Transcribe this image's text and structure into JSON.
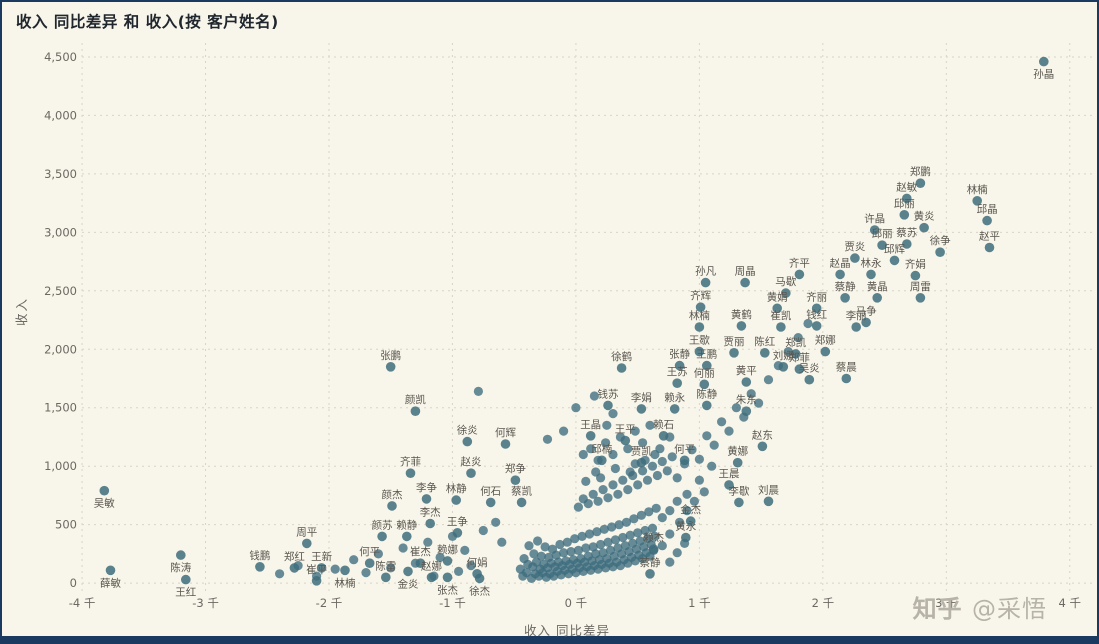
{
  "title": "收入 同比差异 和 收入(按 客户姓名)",
  "watermark": "知乎 @采悟",
  "chart_data": {
    "type": "scatter",
    "title": "收入 同比差异 和 收入(按 客户姓名)",
    "xlabel": "收入 同比差异",
    "ylabel": "收入",
    "xlim": [
      -3960,
      4180
    ],
    "ylim": [
      -170,
      4585
    ],
    "grid": true,
    "x_ticks": [
      {
        "v": -4000,
        "l": "-4 千"
      },
      {
        "v": -3000,
        "l": "-3 千"
      },
      {
        "v": -2000,
        "l": "-2 千"
      },
      {
        "v": -1000,
        "l": "-1 千"
      },
      {
        "v": 0,
        "l": "0 千"
      },
      {
        "v": 1000,
        "l": "1 千"
      },
      {
        "v": 2000,
        "l": "2 千"
      },
      {
        "v": 3000,
        "l": "3 千"
      },
      {
        "v": 4000,
        "l": "4 千"
      }
    ],
    "y_ticks": [
      {
        "v": 0,
        "l": "0"
      },
      {
        "v": 500,
        "l": "500"
      },
      {
        "v": 1000,
        "l": "1,000"
      },
      {
        "v": 1500,
        "l": "1,500"
      },
      {
        "v": 2000,
        "l": "2,000"
      },
      {
        "v": 2500,
        "l": "2,500"
      },
      {
        "v": 3000,
        "l": "3,000"
      },
      {
        "v": 3500,
        "l": "3,500"
      },
      {
        "v": 4000,
        "l": "4,000"
      },
      {
        "v": 4500,
        "l": "4,500"
      }
    ],
    "colors": {
      "point": "#3e6d7d",
      "point_label": "#59564f",
      "tick_label": "#6b6962",
      "grid": "#d8d4c6"
    },
    "points": [
      {
        "n": "孙晶",
        "x": 3790,
        "y": 4460,
        "p": "b"
      },
      {
        "n": "郑鹏",
        "x": 2790,
        "y": 3420
      },
      {
        "n": "赵敏",
        "x": 2680,
        "y": 3290
      },
      {
        "n": "林楠",
        "x": 3250,
        "y": 3270
      },
      {
        "n": "邱丽",
        "x": 2660,
        "y": 3150
      },
      {
        "n": "邱晶",
        "x": 3330,
        "y": 3100
      },
      {
        "n": "许晶",
        "x": 2420,
        "y": 3020
      },
      {
        "n": "黄炎",
        "x": 2820,
        "y": 3040
      },
      {
        "n": "邱丽",
        "x": 2480,
        "y": 2890
      },
      {
        "n": "蔡苏",
        "x": 2680,
        "y": 2900
      },
      {
        "n": "徐争",
        "x": 2950,
        "y": 2830
      },
      {
        "n": "赵平",
        "x": 3350,
        "y": 2870
      },
      {
        "n": "贾炎",
        "x": 2260,
        "y": 2780
      },
      {
        "n": "邱辉",
        "x": 2580,
        "y": 2760
      },
      {
        "n": "齐平",
        "x": 1810,
        "y": 2640
      },
      {
        "n": "赵晶",
        "x": 2140,
        "y": 2640
      },
      {
        "n": "林永",
        "x": 2390,
        "y": 2640
      },
      {
        "n": "齐娟",
        "x": 2750,
        "y": 2630
      },
      {
        "n": "孙凡",
        "x": 1050,
        "y": 2570
      },
      {
        "n": "周晶",
        "x": 1370,
        "y": 2570
      },
      {
        "n": "马歇",
        "x": 1700,
        "y": 2480
      },
      {
        "n": "蔡静",
        "x": 2180,
        "y": 2440
      },
      {
        "n": "黄晶",
        "x": 2440,
        "y": 2440
      },
      {
        "n": "周雷",
        "x": 2790,
        "y": 2440
      },
      {
        "n": "齐辉",
        "x": 1010,
        "y": 2360
      },
      {
        "n": "黄娟",
        "x": 1630,
        "y": 2350
      },
      {
        "n": "齐丽",
        "x": 1950,
        "y": 2350
      },
      {
        "n": "马争",
        "x": 2350,
        "y": 2230
      },
      {
        "n": "林楠",
        "x": 1000,
        "y": 2190
      },
      {
        "n": "黄鹤",
        "x": 1340,
        "y": 2200
      },
      {
        "n": "崔凯",
        "x": 1660,
        "y": 2190
      },
      {
        "n": "钱红",
        "x": 1950,
        "y": 2200
      },
      {
        "n": "李丽",
        "x": 2270,
        "y": 2190
      },
      {
        "n": "王歇",
        "x": 1000,
        "y": 1980
      },
      {
        "n": "贾丽",
        "x": 1280,
        "y": 1970
      },
      {
        "n": "陈红",
        "x": 1530,
        "y": 1970
      },
      {
        "n": "郑凯",
        "x": 1780,
        "y": 1960
      },
      {
        "n": "郑娜",
        "x": 2020,
        "y": 1980
      },
      {
        "n": "张鹏",
        "x": -1500,
        "y": 1850
      },
      {
        "n": "徐鹤",
        "x": 370,
        "y": 1840
      },
      {
        "n": "张静",
        "x": 840,
        "y": 1860
      },
      {
        "n": "王鹏",
        "x": 1060,
        "y": 1860
      },
      {
        "n": "刘娜",
        "x": 1680,
        "y": 1850
      },
      {
        "n": "郑菲",
        "x": 1810,
        "y": 1830
      },
      {
        "n": "吴炎",
        "x": 1890,
        "y": 1740
      },
      {
        "n": "蔡晨",
        "x": 2190,
        "y": 1750
      },
      {
        "n": "王苏",
        "x": 820,
        "y": 1710
      },
      {
        "n": "何丽",
        "x": 1040,
        "y": 1700
      },
      {
        "n": "黄平",
        "x": 1380,
        "y": 1720
      },
      {
        "n": "颜凯",
        "x": -1300,
        "y": 1470
      },
      {
        "n": "钱苏",
        "x": 260,
        "y": 1520
      },
      {
        "n": "李娟",
        "x": 530,
        "y": 1490
      },
      {
        "n": "赖永",
        "x": 800,
        "y": 1490
      },
      {
        "n": "陈静",
        "x": 1060,
        "y": 1520
      },
      {
        "n": "朱东",
        "x": 1380,
        "y": 1470
      },
      {
        "n": "王晶",
        "x": 120,
        "y": 1260
      },
      {
        "n": "王平",
        "x": 400,
        "y": 1220
      },
      {
        "n": "赖石",
        "x": 710,
        "y": 1260
      },
      {
        "n": "徐炎",
        "x": -880,
        "y": 1210
      },
      {
        "n": "何辉",
        "x": -570,
        "y": 1190
      },
      {
        "n": "邱楠",
        "x": 210,
        "y": 1050
      },
      {
        "n": "贾凯",
        "x": 530,
        "y": 1030
      },
      {
        "n": "何平",
        "x": 880,
        "y": 1050
      },
      {
        "n": "赵东",
        "x": 1510,
        "y": 1170
      },
      {
        "n": "黄娜",
        "x": 1310,
        "y": 1030
      },
      {
        "n": "齐菲",
        "x": -1340,
        "y": 940
      },
      {
        "n": "赵炎",
        "x": -850,
        "y": 940
      },
      {
        "n": "郑争",
        "x": -490,
        "y": 880
      },
      {
        "n": "王晨",
        "x": 1240,
        "y": 840
      },
      {
        "n": "刘晨",
        "x": 1560,
        "y": 700
      },
      {
        "n": "李歇",
        "x": 1320,
        "y": 690
      },
      {
        "n": "吴敏",
        "x": -3820,
        "y": 790,
        "p": "b"
      },
      {
        "n": "李争",
        "x": -1210,
        "y": 720
      },
      {
        "n": "林静",
        "x": -970,
        "y": 710
      },
      {
        "n": "何石",
        "x": -690,
        "y": 690
      },
      {
        "n": "蔡凯",
        "x": -440,
        "y": 690
      },
      {
        "n": "颜杰",
        "x": -1490,
        "y": 660
      },
      {
        "n": "金杰",
        "x": 930,
        "y": 530
      },
      {
        "n": "黄永",
        "x": 890,
        "y": 390
      },
      {
        "n": "赖杰",
        "x": 630,
        "y": 290
      },
      {
        "n": "蔡静",
        "x": 600,
        "y": 80
      },
      {
        "n": "颜苏",
        "x": -1570,
        "y": 400
      },
      {
        "n": "赖静",
        "x": -1370,
        "y": 400
      },
      {
        "n": "李杰",
        "x": -1180,
        "y": 510
      },
      {
        "n": "王争",
        "x": -960,
        "y": 430
      },
      {
        "n": "周平",
        "x": -2180,
        "y": 340
      },
      {
        "n": "钱鹏",
        "x": -2560,
        "y": 140
      },
      {
        "n": "郑红",
        "x": -2280,
        "y": 130
      },
      {
        "n": "王新",
        "x": -2060,
        "y": 130
      },
      {
        "n": "何平",
        "x": -1670,
        "y": 170
      },
      {
        "n": "崔杰",
        "x": -1260,
        "y": 170
      },
      {
        "n": "赖娜",
        "x": -1040,
        "y": 190
      },
      {
        "n": "何娟",
        "x": -800,
        "y": 80
      },
      {
        "n": "崔平",
        "x": -2100,
        "y": 20
      },
      {
        "n": "薛敏",
        "x": -3770,
        "y": 110,
        "p": "b"
      },
      {
        "n": "陈涛",
        "x": -3200,
        "y": 240,
        "p": "b"
      },
      {
        "n": "王红",
        "x": -3160,
        "y": 30,
        "p": "b"
      },
      {
        "n": "陈雷",
        "x": -1540,
        "y": 50
      },
      {
        "n": "金炎",
        "x": -1360,
        "y": 100,
        "p": "b"
      },
      {
        "n": "赵娜",
        "x": -1170,
        "y": 50
      },
      {
        "n": "张杰",
        "x": -1040,
        "y": 50,
        "p": "b"
      },
      {
        "n": "徐杰",
        "x": -780,
        "y": 40,
        "p": "b"
      },
      {
        "n": "林楠",
        "x": -1870,
        "y": 110,
        "p": "b"
      }
    ],
    "unlabeled": [
      [
        -450,
        120
      ],
      [
        -430,
        60
      ],
      [
        -420,
        210
      ],
      [
        -400,
        90
      ],
      [
        -390,
        160
      ],
      [
        -380,
        320
      ],
      [
        -360,
        40
      ],
      [
        -350,
        140
      ],
      [
        -340,
        250
      ],
      [
        -330,
        80
      ],
      [
        -320,
        180
      ],
      [
        -310,
        360
      ],
      [
        -300,
        60
      ],
      [
        -290,
        120
      ],
      [
        -280,
        230
      ],
      [
        -270,
        90
      ],
      [
        -260,
        160
      ],
      [
        -250,
        310
      ],
      [
        -240,
        50
      ],
      [
        -230,
        130
      ],
      [
        -220,
        220
      ],
      [
        -210,
        80
      ],
      [
        -200,
        170
      ],
      [
        -190,
        290
      ],
      [
        -180,
        60
      ],
      [
        -170,
        140
      ],
      [
        -160,
        240
      ],
      [
        -150,
        100
      ],
      [
        -140,
        180
      ],
      [
        -130,
        330
      ],
      [
        -120,
        70
      ],
      [
        -110,
        150
      ],
      [
        -100,
        260
      ],
      [
        -90,
        110
      ],
      [
        -80,
        190
      ],
      [
        -70,
        350
      ],
      [
        -60,
        80
      ],
      [
        -50,
        160
      ],
      [
        -40,
        270
      ],
      [
        -30,
        120
      ],
      [
        -20,
        200
      ],
      [
        -10,
        380
      ],
      [
        0,
        90
      ],
      [
        10,
        170
      ],
      [
        20,
        280
      ],
      [
        30,
        130
      ],
      [
        40,
        210
      ],
      [
        50,
        400
      ],
      [
        60,
        100
      ],
      [
        70,
        180
      ],
      [
        80,
        300
      ],
      [
        90,
        140
      ],
      [
        100,
        230
      ],
      [
        110,
        420
      ],
      [
        120,
        110
      ],
      [
        130,
        190
      ],
      [
        140,
        310
      ],
      [
        150,
        150
      ],
      [
        160,
        250
      ],
      [
        170,
        440
      ],
      [
        180,
        120
      ],
      [
        190,
        200
      ],
      [
        200,
        330
      ],
      [
        210,
        160
      ],
      [
        220,
        260
      ],
      [
        230,
        460
      ],
      [
        240,
        130
      ],
      [
        250,
        210
      ],
      [
        260,
        350
      ],
      [
        270,
        170
      ],
      [
        280,
        280
      ],
      [
        290,
        480
      ],
      [
        300,
        140
      ],
      [
        310,
        230
      ],
      [
        320,
        370
      ],
      [
        330,
        180
      ],
      [
        340,
        300
      ],
      [
        350,
        500
      ],
      [
        360,
        150
      ],
      [
        370,
        250
      ],
      [
        380,
        390
      ],
      [
        390,
        200
      ],
      [
        400,
        320
      ],
      [
        410,
        520
      ],
      [
        420,
        170
      ],
      [
        430,
        270
      ],
      [
        440,
        410
      ],
      [
        450,
        220
      ],
      [
        460,
        340
      ],
      [
        470,
        550
      ],
      [
        480,
        190
      ],
      [
        490,
        290
      ],
      [
        500,
        430
      ],
      [
        510,
        240
      ],
      [
        520,
        360
      ],
      [
        530,
        580
      ],
      [
        540,
        210
      ],
      [
        550,
        310
      ],
      [
        560,
        450
      ],
      [
        570,
        260
      ],
      [
        580,
        380
      ],
      [
        590,
        610
      ],
      [
        600,
        230
      ],
      [
        610,
        330
      ],
      [
        620,
        470
      ],
      [
        630,
        280
      ],
      [
        640,
        400
      ],
      [
        650,
        640
      ],
      [
        20,
        650
      ],
      [
        60,
        720
      ],
      [
        100,
        680
      ],
      [
        140,
        760
      ],
      [
        180,
        700
      ],
      [
        220,
        800
      ],
      [
        260,
        730
      ],
      [
        300,
        840
      ],
      [
        340,
        760
      ],
      [
        380,
        880
      ],
      [
        420,
        800
      ],
      [
        460,
        920
      ],
      [
        500,
        840
      ],
      [
        540,
        960
      ],
      [
        580,
        880
      ],
      [
        620,
        1000
      ],
      [
        660,
        920
      ],
      [
        700,
        1040
      ],
      [
        740,
        960
      ],
      [
        780,
        1080
      ],
      [
        60,
        1100
      ],
      [
        120,
        1150
      ],
      [
        180,
        1050
      ],
      [
        240,
        1200
      ],
      [
        300,
        1100
      ],
      [
        360,
        1250
      ],
      [
        420,
        1150
      ],
      [
        480,
        1300
      ],
      [
        540,
        1200
      ],
      [
        600,
        1350
      ],
      [
        160,
        950
      ],
      [
        320,
        980
      ],
      [
        480,
        1020
      ],
      [
        640,
        1100
      ],
      [
        80,
        870
      ],
      [
        200,
        900
      ],
      [
        440,
        950
      ],
      [
        560,
        1050
      ],
      [
        680,
        1150
      ],
      [
        760,
        1250
      ],
      [
        820,
        900
      ],
      [
        880,
        1020
      ],
      [
        940,
        1140
      ],
      [
        1000,
        1060
      ],
      [
        1060,
        1260
      ],
      [
        1120,
        1180
      ],
      [
        1180,
        1380
      ],
      [
        1240,
        1300
      ],
      [
        1300,
        1500
      ],
      [
        1360,
        1420
      ],
      [
        1420,
        1620
      ],
      [
        1480,
        1540
      ],
      [
        1560,
        1740
      ],
      [
        1640,
        1860
      ],
      [
        1720,
        1980
      ],
      [
        1800,
        2100
      ],
      [
        1880,
        2220
      ],
      [
        900,
        760
      ],
      [
        1000,
        880
      ],
      [
        1100,
        1000
      ],
      [
        700,
        560
      ],
      [
        760,
        620
      ],
      [
        820,
        700
      ],
      [
        700,
        320
      ],
      [
        760,
        420
      ],
      [
        840,
        520
      ],
      [
        900,
        620
      ],
      [
        960,
        700
      ],
      [
        1040,
        780
      ],
      [
        760,
        180
      ],
      [
        820,
        260
      ],
      [
        880,
        340
      ],
      [
        -2400,
        80
      ],
      [
        -2250,
        150
      ],
      [
        -2100,
        60
      ],
      [
        -1950,
        120
      ],
      [
        -1800,
        200
      ],
      [
        -1700,
        90
      ],
      [
        -1600,
        250
      ],
      [
        -1500,
        130
      ],
      [
        -1400,
        300
      ],
      [
        -1300,
        170
      ],
      [
        -1200,
        350
      ],
      [
        -1100,
        220
      ],
      [
        -1000,
        400
      ],
      [
        -900,
        280
      ],
      [
        -750,
        450
      ],
      [
        -650,
        520
      ],
      [
        -600,
        350
      ],
      [
        -850,
        150
      ],
      [
        -950,
        100
      ],
      [
        -1150,
        60
      ],
      [
        -790,
        1640
      ],
      [
        -230,
        1230
      ],
      [
        0,
        1500
      ],
      [
        150,
        1600
      ],
      [
        300,
        1450
      ],
      [
        -100,
        1300
      ],
      [
        250,
        1350
      ]
    ]
  }
}
